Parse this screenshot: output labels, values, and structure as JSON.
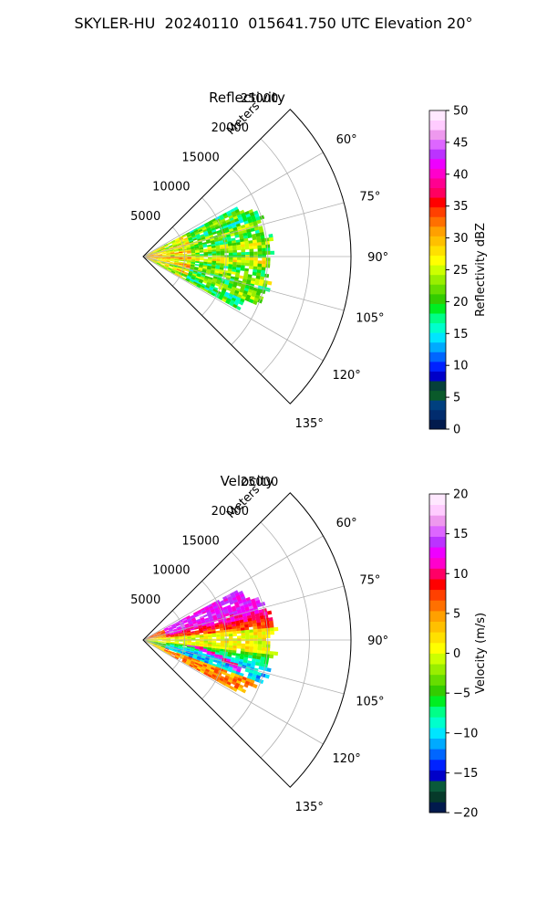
{
  "figure_title": "SKYLER-HU  20240110  015641.750 UTC Elevation 20°",
  "chart_data": [
    {
      "type": "heatmap",
      "subtitle": "Reflectivity",
      "projection": "polar sector",
      "radial_label": "Meters",
      "radial_ticks": [
        5000,
        10000,
        15000,
        20000,
        25000
      ],
      "radial_range": [
        0,
        25000
      ],
      "angular_ticks": [
        "60°",
        "75°",
        "90°",
        "105°",
        "120°",
        "135°"
      ],
      "angular_range_deg": [
        45,
        135
      ],
      "grid": true,
      "colorbar": {
        "label": "Reflectivity dBZ",
        "min": 0,
        "max": 50,
        "ticks": [
          "0",
          "5",
          "10",
          "15",
          "20",
          "25",
          "30",
          "35",
          "40",
          "45",
          "50"
        ]
      },
      "data_extent": {
        "range_m": [
          0,
          16000
        ],
        "azimuth_deg": [
          62,
          118
        ]
      },
      "dominant_values": "15-25 dBZ",
      "peak_values": "30-40 dBZ near radar"
    },
    {
      "type": "heatmap",
      "subtitle": "Velocity",
      "projection": "polar sector",
      "radial_label": "Meters",
      "radial_ticks": [
        5000,
        10000,
        15000,
        20000,
        25000
      ],
      "radial_range": [
        0,
        25000
      ],
      "angular_ticks": [
        "60°",
        "75°",
        "90°",
        "105°",
        "120°",
        "135°"
      ],
      "angular_range_deg": [
        45,
        135
      ],
      "grid": true,
      "colorbar": {
        "label": "Velocity (m/s)",
        "min": -20,
        "max": 20,
        "ticks": [
          "−20",
          "−15",
          "−10",
          "−5",
          "0",
          "5",
          "10",
          "15",
          "20"
        ]
      },
      "data_extent": {
        "range_m": [
          0,
          16000
        ],
        "azimuth_deg": [
          62,
          118
        ]
      },
      "pattern": "positive (+10 to +15 m/s) toward 60-80°, near zero around 90°, negative (−10 to −15 m/s) toward 100-110°, positive band near 110-118°"
    }
  ],
  "colors": {
    "reflectivity_scale": [
      "#011a4d",
      "#012c6e",
      "#00407f",
      "#0a5a2a",
      "#06403a",
      "#0000c8",
      "#0022ff",
      "#0066ff",
      "#00aaff",
      "#00e5ff",
      "#00ffcc",
      "#00ff88",
      "#00ee22",
      "#33cc00",
      "#66dd00",
      "#99ee00",
      "#ccff00",
      "#ffff00",
      "#ffe000",
      "#ffc000",
      "#ffa000",
      "#ff7000",
      "#ff4000",
      "#ff0000",
      "#ff0060",
      "#ff0090",
      "#ff00cc",
      "#ee00ff",
      "#bb33ff",
      "#dd66ff",
      "#ee99ee",
      "#ffccff",
      "#ffe8ff"
    ],
    "velocity_scale": [
      "#011a4d",
      "#063a2a",
      "#0a5a3a",
      "#0000c8",
      "#0022ff",
      "#0066ff",
      "#00aaff",
      "#00e5ff",
      "#00ffcc",
      "#00ff88",
      "#00ee22",
      "#33cc00",
      "#66dd00",
      "#99ee00",
      "#ccff00",
      "#ffff00",
      "#ffe000",
      "#ffc000",
      "#ffa000",
      "#ff7000",
      "#ff4000",
      "#ff0000",
      "#ff0066",
      "#ff00cc",
      "#ee00ff",
      "#bb33ff",
      "#dd66ff",
      "#ee99ee",
      "#ffccff",
      "#ffe8ff"
    ]
  }
}
